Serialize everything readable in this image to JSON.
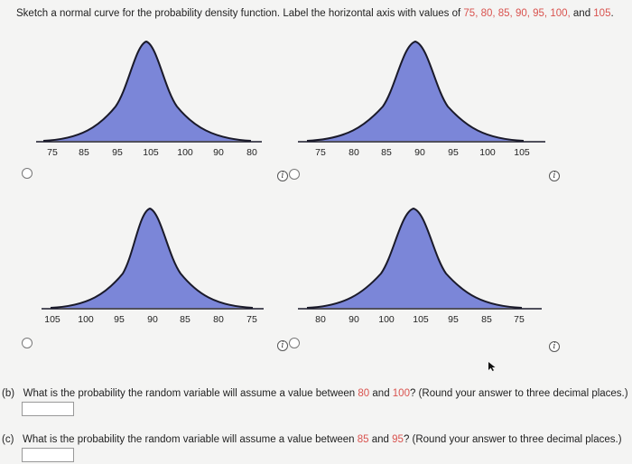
{
  "prompt": {
    "text": "Sketch a normal curve for the probability density function. Label the horizontal axis with values of ",
    "values": "75, 80, 85, 90, 95, 100,",
    "and": " and ",
    "last": "105",
    "end": "."
  },
  "options": [
    {
      "ticks": [
        "75",
        "85",
        "95",
        "105",
        "100",
        "90",
        "80"
      ]
    },
    {
      "ticks": [
        "75",
        "80",
        "85",
        "90",
        "95",
        "100",
        "105"
      ]
    },
    {
      "ticks": [
        "105",
        "100",
        "95",
        "90",
        "85",
        "80",
        "75"
      ]
    },
    {
      "ticks": [
        "80",
        "90",
        "100",
        "105",
        "95",
        "85",
        "75"
      ]
    }
  ],
  "info_icon": "i",
  "questions": {
    "b": {
      "label": "(b)",
      "text1": "What is the probability the random variable will assume a value between ",
      "v1": "80",
      "and": " and ",
      "v2": "100",
      "text2": "? (Round your answer to three decimal places.)"
    },
    "c": {
      "label": "(c)",
      "text1": "What is the probability the random variable will assume a value between ",
      "v1": "85",
      "and": " and ",
      "v2": "95",
      "text2": "? (Round your answer to three decimal places.)"
    }
  },
  "colors": {
    "fill": "#7b86d8",
    "stroke": "#1a1a2a",
    "highlight": "#d9534f"
  }
}
